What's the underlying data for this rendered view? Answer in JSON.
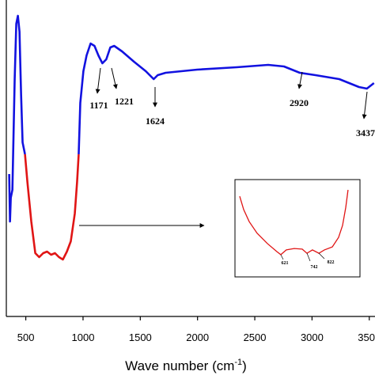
{
  "chart_data": {
    "type": "line",
    "xlabel": "Wave number (cm",
    "xlabel_sup": "-1",
    "xlabel_end": ")",
    "xlim": [
      330,
      3550
    ],
    "ylim": [
      0,
      100
    ],
    "xticks": [
      500,
      1000,
      1500,
      2000,
      2500,
      3000,
      3500
    ],
    "series": [
      {
        "color": "#1212e0",
        "x": [
          355,
          362,
          369,
          383,
          403,
          417,
          431,
          445,
          459,
          472,
          493,
          700,
          962,
          976,
          1003,
          1031,
          1066,
          1100,
          1134,
          1169,
          1203,
          1238,
          1272,
          1341,
          1445,
          1548,
          1617,
          1652,
          1721,
          1997,
          2341,
          2617,
          2755,
          2893,
          3031,
          3238,
          3410,
          3479,
          3541
        ],
        "values": [
          45,
          30,
          37.5,
          40,
          75,
          92.5,
          95,
          90,
          70,
          55,
          51.25,
          null,
          51.25,
          67.5,
          77.5,
          82.5,
          86.25,
          85.5,
          82.5,
          80,
          81.25,
          85,
          85.5,
          83.75,
          80.5,
          77.5,
          75,
          76.25,
          77,
          78,
          78.75,
          79.5,
          79,
          77,
          76.25,
          75,
          72.5,
          72,
          73.75
        ]
      },
      {
        "color": "#e01515",
        "x": [
          493,
          514,
          548,
          583,
          617,
          652,
          686,
          721,
          755,
          790,
          824,
          859,
          893,
          928,
          948,
          962
        ],
        "values": [
          51.25,
          42.5,
          30,
          20,
          18.75,
          20,
          20.5,
          19.5,
          20,
          18.75,
          18,
          20.5,
          23.75,
          32.5,
          42.5,
          51.25
        ]
      }
    ],
    "peaks": [
      1171,
      1221,
      1624,
      2920,
      3437
    ],
    "inset": {
      "xlim": [
        380,
        1040
      ],
      "ylim": [
        15,
        50
      ],
      "color": "#e01515",
      "x": [
        405,
        426,
        455,
        497,
        551,
        601,
        622,
        651,
        693,
        735,
        760,
        789,
        823,
        852,
        894,
        927,
        948,
        965,
        977
      ],
      "values": [
        44,
        39.2,
        34.9,
        30.7,
        27,
        24.1,
        23,
        24.7,
        25.2,
        25,
        23.5,
        24.7,
        23.5,
        24.7,
        25.8,
        29.2,
        33.5,
        40,
        46.3
      ],
      "peaks": [
        621,
        742,
        822
      ]
    }
  }
}
